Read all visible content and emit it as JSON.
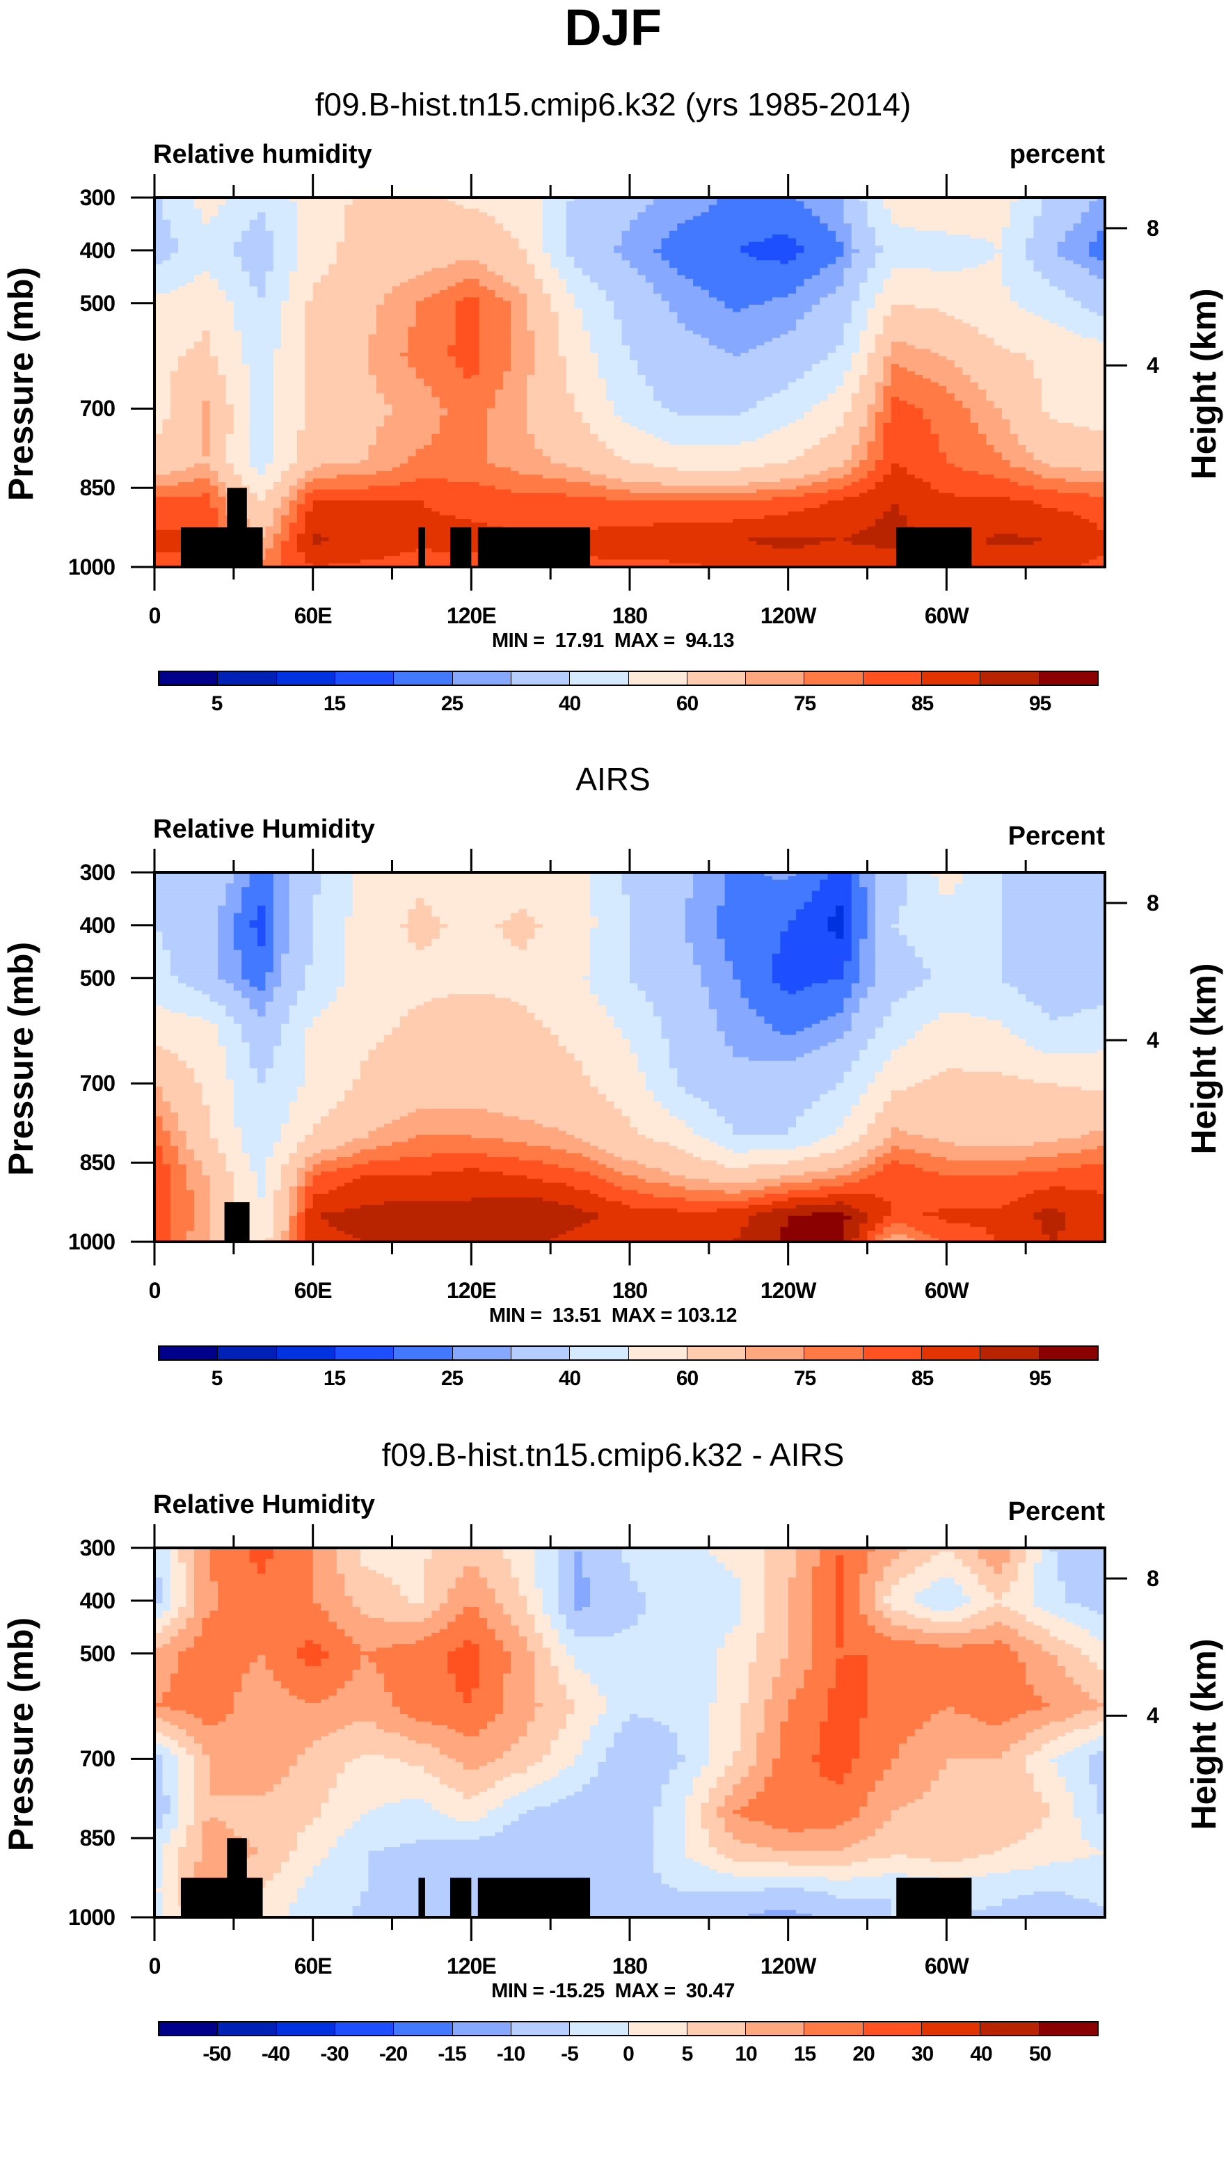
{
  "title": "DJF",
  "chart_data": [
    {
      "type": "heatmap",
      "title": "f09.B-hist.tn15.cmip6.k32 (yrs 1985-2014)",
      "left_label": "Relative humidity",
      "right_label": "percent",
      "min_max": "MIN =  17.91  MAX =  94.13",
      "ylabel": "Pressure (mb)",
      "ylabel_right": "Height (km)",
      "x_ticks": [
        {
          "lon": 0,
          "label": "0"
        },
        {
          "lon": 60,
          "label": "60E"
        },
        {
          "lon": 120,
          "label": "120E"
        },
        {
          "lon": 180,
          "label": "180"
        },
        {
          "lon": 240,
          "label": "120W"
        },
        {
          "lon": 300,
          "label": "60W"
        }
      ],
      "y_ticks": [
        {
          "p": 300,
          "label": "300"
        },
        {
          "p": 400,
          "label": "400"
        },
        {
          "p": 500,
          "label": "500"
        },
        {
          "p": 700,
          "label": "700"
        },
        {
          "p": 850,
          "label": "850"
        },
        {
          "p": 1000,
          "label": "1000"
        }
      ],
      "height_ticks": [
        {
          "p": 358,
          "label": "8"
        },
        {
          "p": 618,
          "label": "4"
        }
      ],
      "colorbar": {
        "levels": [
          5,
          10,
          15,
          20,
          25,
          30,
          40,
          50,
          60,
          70,
          75,
          80,
          85,
          90,
          95
        ],
        "labels": [
          "5",
          "",
          "15",
          "",
          "25",
          "",
          "40",
          "",
          "60",
          "",
          "75",
          "",
          "85",
          "",
          "95"
        ],
        "colors": [
          "#00008a",
          "#0021b5",
          "#0032e0",
          "#1e4fff",
          "#4279ff",
          "#86a9ff",
          "#b5cdff",
          "#d6eaff",
          "#ffeada",
          "#ffccb0",
          "#ffa880",
          "#ff7a44",
          "#ff5220",
          "#e23400",
          "#b82300",
          "#8b0000"
        ]
      },
      "lon": [
        0,
        20,
        40,
        60,
        80,
        100,
        120,
        140,
        160,
        180,
        200,
        220,
        240,
        260,
        280,
        300,
        320,
        340,
        360
      ],
      "pressure": [
        300,
        400,
        500,
        600,
        700,
        800,
        875,
        950,
        1000
      ],
      "values": [
        [
          38,
          55,
          42,
          55,
          62,
          62,
          58,
          55,
          38,
          32,
          28,
          24,
          24,
          30,
          55,
          60,
          55,
          38,
          28
        ],
        [
          35,
          45,
          34,
          55,
          65,
          65,
          68,
          60,
          35,
          28,
          22,
          20,
          18,
          24,
          45,
          45,
          50,
          30,
          22
        ],
        [
          52,
          58,
          40,
          62,
          68,
          75,
          82,
          72,
          50,
          35,
          28,
          24,
          26,
          33,
          60,
          58,
          52,
          45,
          35
        ],
        [
          58,
          62,
          45,
          62,
          70,
          77,
          82,
          73,
          55,
          40,
          33,
          30,
          33,
          42,
          74,
          70,
          62,
          58,
          55
        ],
        [
          55,
          72,
          45,
          62,
          68,
          72,
          78,
          70,
          60,
          45,
          37,
          38,
          45,
          56,
          82,
          78,
          70,
          58,
          55
        ],
        [
          63,
          70,
          45,
          68,
          70,
          76,
          76,
          72,
          68,
          60,
          55,
          55,
          60,
          68,
          85,
          80,
          76,
          68,
          66
        ],
        [
          82,
          82,
          60,
          85,
          85,
          85,
          84,
          82,
          82,
          80,
          80,
          80,
          82,
          86,
          90,
          86,
          86,
          84,
          82
        ],
        [
          86,
          86,
          70,
          91,
          88,
          86,
          86,
          86,
          86,
          88,
          89,
          90,
          91,
          90,
          92,
          88,
          91,
          90,
          86
        ],
        [
          84,
          84,
          76,
          85,
          84,
          83,
          84,
          84,
          84,
          84,
          84,
          86,
          88,
          86,
          86,
          85,
          86,
          86,
          84
        ]
      ],
      "mask": [
        {
          "lon0": 10,
          "lon1": 41,
          "ptop": 925
        },
        {
          "lon0": 27.5,
          "lon1": 35,
          "ptop": 850
        },
        {
          "lon0": 100,
          "lon1": 102.5,
          "ptop": 925
        },
        {
          "lon0": 112,
          "lon1": 120,
          "ptop": 925
        },
        {
          "lon0": 122.5,
          "lon1": 165,
          "ptop": 925
        },
        {
          "lon0": 281,
          "lon1": 309.5,
          "ptop": 925
        }
      ]
    },
    {
      "type": "heatmap",
      "title": "AIRS",
      "left_label": "Relative Humidity",
      "right_label": "Percent",
      "min_max": "MIN =  13.51  MAX = 103.12",
      "ylabel": "Pressure (mb)",
      "ylabel_right": "Height (km)",
      "x_ticks": [
        {
          "lon": 0,
          "label": "0"
        },
        {
          "lon": 60,
          "label": "60E"
        },
        {
          "lon": 120,
          "label": "120E"
        },
        {
          "lon": 180,
          "label": "180"
        },
        {
          "lon": 240,
          "label": "120W"
        },
        {
          "lon": 300,
          "label": "60W"
        }
      ],
      "y_ticks": [
        {
          "p": 300,
          "label": "300"
        },
        {
          "p": 400,
          "label": "400"
        },
        {
          "p": 500,
          "label": "500"
        },
        {
          "p": 700,
          "label": "700"
        },
        {
          "p": 850,
          "label": "850"
        },
        {
          "p": 1000,
          "label": "1000"
        }
      ],
      "height_ticks": [
        {
          "p": 358,
          "label": "8"
        },
        {
          "p": 618,
          "label": "4"
        }
      ],
      "colorbar": {
        "levels": [
          5,
          10,
          15,
          20,
          25,
          30,
          40,
          50,
          60,
          70,
          75,
          80,
          85,
          90,
          95
        ],
        "labels": [
          "5",
          "",
          "15",
          "",
          "25",
          "",
          "40",
          "",
          "60",
          "",
          "75",
          "",
          "85",
          "",
          "95"
        ],
        "colors": [
          "#00008a",
          "#0021b5",
          "#0032e0",
          "#1e4fff",
          "#4279ff",
          "#86a9ff",
          "#b5cdff",
          "#d6eaff",
          "#ffeada",
          "#ffccb0",
          "#ffa880",
          "#ff7a44",
          "#ff5220",
          "#e23400",
          "#b82300",
          "#8b0000"
        ]
      },
      "lon": [
        0,
        20,
        40,
        60,
        80,
        100,
        120,
        140,
        160,
        180,
        200,
        220,
        240,
        260,
        280,
        300,
        320,
        340,
        360
      ],
      "pressure": [
        300,
        400,
        500,
        600,
        700,
        800,
        875,
        950,
        1000
      ],
      "values": [
        [
          40,
          38,
          22,
          38,
          55,
          58,
          55,
          55,
          55,
          38,
          32,
          24,
          26,
          18,
          35,
          55,
          40,
          38,
          30
        ],
        [
          40,
          32,
          18,
          40,
          55,
          62,
          58,
          62,
          55,
          40,
          30,
          22,
          20,
          13,
          40,
          45,
          40,
          30,
          30
        ],
        [
          45,
          32,
          22,
          42,
          55,
          58,
          58,
          58,
          52,
          40,
          33,
          25,
          18,
          20,
          35,
          42,
          40,
          32,
          35
        ],
        [
          56,
          55,
          32,
          52,
          58,
          62,
          65,
          62,
          58,
          48,
          35,
          28,
          24,
          28,
          45,
          55,
          52,
          42,
          45
        ],
        [
          70,
          58,
          40,
          52,
          62,
          65,
          66,
          64,
          62,
          55,
          38,
          32,
          34,
          40,
          58,
          62,
          62,
          60,
          58
        ],
        [
          80,
          62,
          42,
          62,
          70,
          75,
          75,
          73,
          70,
          62,
          55,
          40,
          40,
          52,
          72,
          68,
          66,
          68,
          72
        ],
        [
          85,
          70,
          48,
          80,
          85,
          85,
          87,
          85,
          82,
          75,
          70,
          65,
          70,
          75,
          85,
          80,
          80,
          82,
          84
        ],
        [
          86,
          70,
          50,
          90,
          92,
          93,
          92,
          95,
          92,
          88,
          87,
          88,
          95,
          97,
          84,
          86,
          86,
          92,
          86
        ],
        [
          85,
          70,
          55,
          88,
          90,
          91,
          90,
          91,
          88,
          86,
          86,
          90,
          96,
          97,
          70,
          82,
          85,
          90,
          86
        ]
      ],
      "mask": [
        {
          "lon0": 26.5,
          "lon1": 36,
          "ptop": 925
        }
      ]
    },
    {
      "type": "heatmap",
      "title": "f09.B-hist.tn15.cmip6.k32 - AIRS",
      "left_label": "Relative Humidity",
      "right_label": "Percent",
      "min_max": "MIN = -15.25  MAX =  30.47",
      "ylabel": "Pressure (mb)",
      "ylabel_right": "Height (km)",
      "x_ticks": [
        {
          "lon": 0,
          "label": "0"
        },
        {
          "lon": 60,
          "label": "60E"
        },
        {
          "lon": 120,
          "label": "120E"
        },
        {
          "lon": 180,
          "label": "180"
        },
        {
          "lon": 240,
          "label": "120W"
        },
        {
          "lon": 300,
          "label": "60W"
        }
      ],
      "y_ticks": [
        {
          "p": 300,
          "label": "300"
        },
        {
          "p": 400,
          "label": "400"
        },
        {
          "p": 500,
          "label": "500"
        },
        {
          "p": 700,
          "label": "700"
        },
        {
          "p": 850,
          "label": "850"
        },
        {
          "p": 1000,
          "label": "1000"
        }
      ],
      "height_ticks": [
        {
          "p": 358,
          "label": "8"
        },
        {
          "p": 618,
          "label": "4"
        }
      ],
      "colorbar": {
        "levels": [
          -50,
          -40,
          -30,
          -20,
          -15,
          -10,
          -5,
          0,
          5,
          10,
          15,
          20,
          30,
          40,
          50
        ],
        "labels": [
          "-50",
          "-40",
          "-30",
          "-20",
          "-15",
          "-10",
          "-5",
          "0",
          "5",
          "10",
          "15",
          "20",
          "30",
          "40",
          "50"
        ],
        "colors": [
          "#00008a",
          "#0021b5",
          "#0032e0",
          "#1e4fff",
          "#4279ff",
          "#86a9ff",
          "#b5cdff",
          "#d6eaff",
          "#ffeada",
          "#ffccb0",
          "#ffa880",
          "#ff7a44",
          "#ff5220",
          "#e23400",
          "#b82300",
          "#8b0000"
        ]
      },
      "lon": [
        0,
        20,
        40,
        60,
        80,
        100,
        120,
        140,
        160,
        180,
        200,
        220,
        240,
        260,
        280,
        300,
        320,
        340,
        360
      ],
      "pressure": [
        300,
        400,
        500,
        600,
        700,
        800,
        875,
        950,
        1000
      ],
      "values": [
        [
          -5,
          15,
          22,
          15,
          3,
          4,
          8,
          2,
          -10,
          -4,
          -2,
          2,
          8,
          20,
          12,
          5,
          15,
          -5,
          -8
        ],
        [
          -8,
          14,
          18,
          15,
          8,
          4,
          15,
          5,
          -12,
          -6,
          -3,
          -2,
          10,
          22,
          2,
          -5,
          5,
          -4,
          -8
        ],
        [
          12,
          18,
          15,
          22,
          15,
          18,
          22,
          12,
          -2,
          -4,
          -4,
          2,
          10,
          20,
          20,
          18,
          18,
          10,
          2
        ],
        [
          15,
          18,
          12,
          15,
          12,
          18,
          20,
          12,
          5,
          -4,
          -4,
          3,
          15,
          22,
          18,
          15,
          18,
          15,
          10
        ],
        [
          -8,
          10,
          15,
          8,
          4,
          6,
          12,
          8,
          0,
          -10,
          -5,
          5,
          18,
          22,
          15,
          10,
          10,
          0,
          -8
        ],
        [
          -10,
          10,
          8,
          6,
          0,
          -2,
          3,
          -5,
          -8,
          -10,
          0,
          15,
          20,
          18,
          10,
          8,
          10,
          5,
          -6
        ],
        [
          -2,
          12,
          10,
          2,
          -5,
          -6,
          -8,
          -10,
          -10,
          -8,
          0,
          8,
          10,
          10,
          6,
          8,
          5,
          2,
          0
        ],
        [
          -1,
          14,
          5,
          -2,
          -5,
          -8,
          -10,
          -10,
          -10,
          -7,
          -5,
          -5,
          -6,
          -4,
          -5,
          -3,
          -4,
          -5,
          -3
        ],
        [
          -3,
          10,
          3,
          -3,
          -6,
          -8,
          -10,
          -10,
          -10,
          -8,
          -8,
          -10,
          -12,
          -8,
          -5,
          -5,
          -6,
          -10,
          -6
        ]
      ],
      "mask": [
        {
          "lon0": 10,
          "lon1": 41,
          "ptop": 925
        },
        {
          "lon0": 27.5,
          "lon1": 35,
          "ptop": 850
        },
        {
          "lon0": 100,
          "lon1": 102.5,
          "ptop": 925
        },
        {
          "lon0": 112,
          "lon1": 120,
          "ptop": 925
        },
        {
          "lon0": 122.5,
          "lon1": 165,
          "ptop": 925
        },
        {
          "lon0": 281,
          "lon1": 309.5,
          "ptop": 925
        }
      ]
    }
  ]
}
